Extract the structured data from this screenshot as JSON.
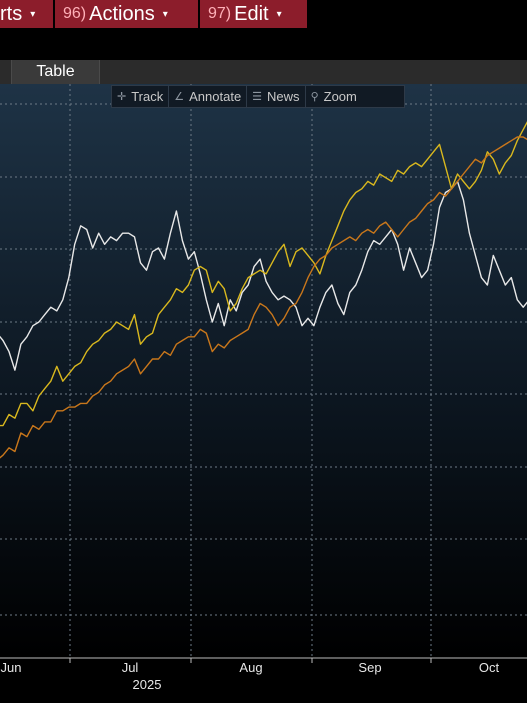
{
  "menu": {
    "items": [
      {
        "num": "",
        "label": "rts"
      },
      {
        "num": "96)",
        "label": "Actions"
      },
      {
        "num": "97)",
        "label": "Edit"
      }
    ],
    "caret": "▾"
  },
  "tabs": {
    "table": "Table"
  },
  "chart_toolbar": {
    "track": "Track",
    "annotate": "Annotate",
    "news": "News",
    "zoom": "Zoom"
  },
  "chart_data": {
    "type": "line",
    "title": "",
    "xlabel": "",
    "ylabel": "",
    "x_ticks": [
      "Jun",
      "Jul",
      "Aug",
      "Sep",
      "Oct"
    ],
    "year_label": "2025",
    "grid": true,
    "series": [
      {
        "color": "#e8e8e8",
        "points": [
          [
            0,
            -2
          ],
          [
            6,
            -5
          ],
          [
            10,
            -8
          ],
          [
            14,
            -13
          ],
          [
            18,
            -6
          ],
          [
            22,
            -4
          ],
          [
            26,
            -1
          ],
          [
            30,
            0
          ],
          [
            34,
            2
          ],
          [
            38,
            4
          ],
          [
            42,
            3
          ],
          [
            46,
            6
          ],
          [
            50,
            12
          ],
          [
            54,
            21
          ],
          [
            58,
            26
          ],
          [
            62,
            25
          ],
          [
            66,
            20
          ],
          [
            70,
            24
          ],
          [
            74,
            21
          ],
          [
            78,
            23
          ],
          [
            82,
            22
          ],
          [
            86,
            24
          ],
          [
            90,
            24
          ],
          [
            94,
            23
          ],
          [
            98,
            16
          ],
          [
            102,
            14
          ],
          [
            106,
            19
          ],
          [
            110,
            20
          ],
          [
            114,
            17
          ],
          [
            118,
            24
          ],
          [
            122,
            30
          ],
          [
            126,
            22
          ],
          [
            130,
            17
          ],
          [
            134,
            19
          ],
          [
            138,
            13
          ],
          [
            142,
            6
          ],
          [
            146,
            0
          ],
          [
            150,
            5
          ],
          [
            154,
            -1
          ],
          [
            158,
            6
          ],
          [
            162,
            3
          ],
          [
            166,
            8
          ],
          [
            170,
            10
          ],
          [
            174,
            15
          ],
          [
            178,
            17
          ],
          [
            182,
            11
          ],
          [
            186,
            8
          ],
          [
            190,
            6
          ],
          [
            194,
            7
          ],
          [
            198,
            6
          ],
          [
            202,
            4
          ],
          [
            206,
            -1
          ],
          [
            210,
            1
          ],
          [
            214,
            -1
          ],
          [
            218,
            4
          ],
          [
            222,
            8
          ],
          [
            226,
            10
          ],
          [
            230,
            5
          ],
          [
            234,
            2
          ],
          [
            238,
            8
          ],
          [
            242,
            10
          ],
          [
            246,
            14
          ],
          [
            250,
            19
          ],
          [
            254,
            22
          ],
          [
            258,
            21
          ],
          [
            262,
            23
          ],
          [
            266,
            25
          ],
          [
            270,
            21
          ],
          [
            274,
            14
          ],
          [
            278,
            20
          ],
          [
            282,
            16
          ],
          [
            286,
            12
          ],
          [
            290,
            14
          ],
          [
            294,
            21
          ],
          [
            298,
            31
          ],
          [
            302,
            35
          ],
          [
            306,
            36
          ],
          [
            310,
            38
          ],
          [
            314,
            33
          ],
          [
            318,
            24
          ],
          [
            322,
            18
          ],
          [
            326,
            12
          ],
          [
            330,
            10
          ],
          [
            334,
            18
          ],
          [
            338,
            14
          ],
          [
            342,
            10
          ],
          [
            346,
            12
          ],
          [
            350,
            6
          ],
          [
            354,
            4
          ],
          [
            358,
            6
          ],
          [
            362,
            5
          ]
        ]
      },
      {
        "color": "#d9b81e",
        "points": [
          [
            0,
            -28
          ],
          [
            6,
            -28
          ],
          [
            10,
            -25
          ],
          [
            14,
            -26
          ],
          [
            18,
            -22
          ],
          [
            22,
            -22
          ],
          [
            26,
            -24
          ],
          [
            30,
            -20
          ],
          [
            34,
            -18
          ],
          [
            38,
            -16
          ],
          [
            42,
            -12
          ],
          [
            46,
            -16
          ],
          [
            50,
            -14
          ],
          [
            54,
            -12
          ],
          [
            58,
            -11
          ],
          [
            62,
            -8
          ],
          [
            66,
            -6
          ],
          [
            70,
            -5
          ],
          [
            74,
            -3
          ],
          [
            78,
            -2
          ],
          [
            82,
            0
          ],
          [
            86,
            -1
          ],
          [
            90,
            -2
          ],
          [
            94,
            2
          ],
          [
            98,
            -6
          ],
          [
            102,
            -4
          ],
          [
            106,
            -3
          ],
          [
            110,
            2
          ],
          [
            114,
            4
          ],
          [
            118,
            6
          ],
          [
            122,
            9
          ],
          [
            126,
            8
          ],
          [
            130,
            10
          ],
          [
            134,
            14
          ],
          [
            138,
            15
          ],
          [
            142,
            14
          ],
          [
            146,
            8
          ],
          [
            150,
            11
          ],
          [
            154,
            9
          ],
          [
            158,
            3
          ],
          [
            162,
            5
          ],
          [
            166,
            9
          ],
          [
            170,
            12
          ],
          [
            174,
            13
          ],
          [
            178,
            14
          ],
          [
            182,
            13
          ],
          [
            186,
            16
          ],
          [
            190,
            19
          ],
          [
            194,
            21
          ],
          [
            198,
            15
          ],
          [
            202,
            19
          ],
          [
            206,
            20
          ],
          [
            210,
            18
          ],
          [
            214,
            16
          ],
          [
            218,
            13
          ],
          [
            222,
            18
          ],
          [
            226,
            22
          ],
          [
            230,
            26
          ],
          [
            234,
            30
          ],
          [
            238,
            33
          ],
          [
            242,
            35
          ],
          [
            246,
            36
          ],
          [
            250,
            38
          ],
          [
            254,
            37
          ],
          [
            258,
            40
          ],
          [
            262,
            39
          ],
          [
            266,
            38
          ],
          [
            270,
            41
          ],
          [
            274,
            40
          ],
          [
            278,
            42
          ],
          [
            282,
            43
          ],
          [
            286,
            42
          ],
          [
            290,
            44
          ],
          [
            294,
            46
          ],
          [
            298,
            48
          ],
          [
            302,
            42
          ],
          [
            306,
            36
          ],
          [
            310,
            40
          ],
          [
            314,
            38
          ],
          [
            318,
            36
          ],
          [
            322,
            38
          ],
          [
            326,
            41
          ],
          [
            330,
            46
          ],
          [
            334,
            44
          ],
          [
            338,
            40
          ],
          [
            342,
            43
          ],
          [
            346,
            45
          ],
          [
            350,
            49
          ],
          [
            354,
            52
          ],
          [
            358,
            55
          ],
          [
            362,
            57
          ]
        ]
      },
      {
        "color": "#c9771b",
        "points": [
          [
            0,
            -38
          ],
          [
            6,
            -36
          ],
          [
            10,
            -34
          ],
          [
            14,
            -35
          ],
          [
            18,
            -30
          ],
          [
            22,
            -31
          ],
          [
            26,
            -28
          ],
          [
            30,
            -29
          ],
          [
            34,
            -27
          ],
          [
            38,
            -27
          ],
          [
            42,
            -24
          ],
          [
            46,
            -24
          ],
          [
            50,
            -23
          ],
          [
            54,
            -23
          ],
          [
            58,
            -22
          ],
          [
            62,
            -22
          ],
          [
            66,
            -20
          ],
          [
            70,
            -19
          ],
          [
            74,
            -17
          ],
          [
            78,
            -16
          ],
          [
            82,
            -14
          ],
          [
            86,
            -13
          ],
          [
            90,
            -12
          ],
          [
            94,
            -10
          ],
          [
            98,
            -14
          ],
          [
            102,
            -12
          ],
          [
            106,
            -10
          ],
          [
            110,
            -10
          ],
          [
            114,
            -8
          ],
          [
            118,
            -9
          ],
          [
            122,
            -6
          ],
          [
            126,
            -5
          ],
          [
            130,
            -4
          ],
          [
            134,
            -4
          ],
          [
            138,
            -2
          ],
          [
            142,
            -3
          ],
          [
            146,
            -8
          ],
          [
            150,
            -6
          ],
          [
            154,
            -7
          ],
          [
            158,
            -5
          ],
          [
            162,
            -4
          ],
          [
            166,
            -3
          ],
          [
            170,
            -2
          ],
          [
            174,
            2
          ],
          [
            178,
            5
          ],
          [
            182,
            4
          ],
          [
            186,
            2
          ],
          [
            190,
            -1
          ],
          [
            194,
            1
          ],
          [
            198,
            4
          ],
          [
            202,
            5
          ],
          [
            206,
            8
          ],
          [
            210,
            12
          ],
          [
            214,
            15
          ],
          [
            218,
            17
          ],
          [
            222,
            18
          ],
          [
            226,
            20
          ],
          [
            230,
            21
          ],
          [
            234,
            22
          ],
          [
            238,
            23
          ],
          [
            242,
            22
          ],
          [
            246,
            24
          ],
          [
            250,
            25
          ],
          [
            254,
            24
          ],
          [
            258,
            26
          ],
          [
            262,
            27
          ],
          [
            266,
            25
          ],
          [
            270,
            23
          ],
          [
            274,
            25
          ],
          [
            278,
            27
          ],
          [
            282,
            28
          ],
          [
            286,
            30
          ],
          [
            290,
            32
          ],
          [
            294,
            33
          ],
          [
            298,
            35
          ],
          [
            302,
            34
          ],
          [
            306,
            36
          ],
          [
            310,
            38
          ],
          [
            314,
            40
          ],
          [
            318,
            42
          ],
          [
            322,
            44
          ],
          [
            326,
            43
          ],
          [
            330,
            45
          ],
          [
            334,
            46
          ],
          [
            338,
            47
          ],
          [
            342,
            48
          ],
          [
            346,
            49
          ],
          [
            350,
            50
          ],
          [
            354,
            50
          ],
          [
            358,
            49
          ],
          [
            362,
            50
          ]
        ]
      }
    ]
  }
}
